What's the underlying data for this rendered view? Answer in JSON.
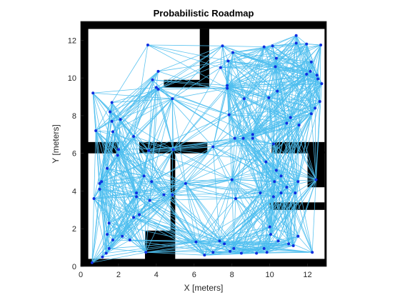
{
  "chart_data": {
    "type": "scatter",
    "title": "Probabilistic Roadmap",
    "xlabel": "X [meters]",
    "ylabel": "Y [meters]",
    "xlim": [
      0,
      13
    ],
    "ylim": [
      0,
      13
    ],
    "xticks": [
      "0",
      "2",
      "4",
      "6",
      "8",
      "10",
      "12"
    ],
    "yticks": [
      "0",
      "2",
      "4",
      "6",
      "8",
      "10",
      "12"
    ],
    "grid": false,
    "colors": {
      "obstacle": "#000000",
      "edge": "#4dbeee",
      "node": "#0e2ee0",
      "axis": "#262626"
    },
    "obstacles": [
      {
        "x": 0,
        "y": 12.6,
        "w": 13.2,
        "h": 0.4
      },
      {
        "x": 0,
        "y": 0,
        "w": 13.2,
        "h": 0.4
      },
      {
        "x": 0,
        "y": 0,
        "w": 0.4,
        "h": 13
      },
      {
        "x": 12.9,
        "y": 0,
        "w": 0.3,
        "h": 13
      },
      {
        "x": 0,
        "y": 6,
        "w": 2,
        "h": 0.6
      },
      {
        "x": 3.1,
        "y": 6,
        "w": 2.2,
        "h": 0.6
      },
      {
        "x": 3.4,
        "y": 0,
        "w": 1.6,
        "h": 1.9
      },
      {
        "x": 4.75,
        "y": 1.8,
        "w": 0.25,
        "h": 4.5
      },
      {
        "x": 4.4,
        "y": 9.5,
        "w": 1.9,
        "h": 0.4
      },
      {
        "x": 6.3,
        "y": 9.5,
        "w": 0.5,
        "h": 3.1
      },
      {
        "x": 5.3,
        "y": 6,
        "w": 1.4,
        "h": 0.6
      },
      {
        "x": 10.1,
        "y": 6,
        "w": 2.8,
        "h": 0.6
      },
      {
        "x": 10,
        "y": 3,
        "w": 2.9,
        "h": 0.4
      },
      {
        "x": 12,
        "y": 4.2,
        "w": 0.9,
        "h": 1.9
      }
    ],
    "nodes": [
      [
        3.55,
        11.75
      ],
      [
        0.65,
        9.2
      ],
      [
        0.8,
        7.2
      ],
      [
        1.65,
        8.7
      ],
      [
        1.55,
        8.2
      ],
      [
        1.65,
        7.7
      ],
      [
        1.7,
        7.15
      ],
      [
        2.1,
        7.8
      ],
      [
        2.8,
        6.9
      ],
      [
        4.0,
        9.5
      ],
      [
        4.1,
        10.35
      ],
      [
        3.8,
        9.9
      ],
      [
        4.85,
        8.9
      ],
      [
        4.9,
        6.2
      ],
      [
        3.6,
        6.15
      ],
      [
        2.0,
        6.2
      ],
      [
        1.95,
        5.9
      ],
      [
        1.4,
        5.2
      ],
      [
        1.1,
        4.5
      ],
      [
        1.0,
        4.4
      ],
      [
        1.0,
        4.1
      ],
      [
        0.7,
        3.6
      ],
      [
        1.5,
        2.3
      ],
      [
        1.4,
        1.7
      ],
      [
        1.15,
        0.5
      ],
      [
        1.35,
        0.7
      ],
      [
        1.5,
        0.95
      ],
      [
        2.2,
        1.6
      ],
      [
        2.6,
        1.4
      ],
      [
        2.8,
        2.6
      ],
      [
        3.1,
        2.75
      ],
      [
        2.95,
        3.7
      ],
      [
        2.95,
        3.9
      ],
      [
        3.35,
        4.8
      ],
      [
        3.75,
        4.5
      ],
      [
        3.65,
        3.5
      ],
      [
        3.45,
        0.75
      ],
      [
        0.6,
        0.2
      ],
      [
        1.7,
        1.4
      ],
      [
        4.4,
        3.8
      ],
      [
        4.85,
        3.8
      ],
      [
        5.55,
        4.4
      ],
      [
        6.1,
        1.3
      ],
      [
        6.55,
        0.6
      ],
      [
        7.0,
        0.75
      ],
      [
        7.6,
        1.2
      ],
      [
        7.9,
        0.8
      ],
      [
        8.1,
        0.95
      ],
      [
        8.5,
        0.7
      ],
      [
        9.3,
        0.7
      ],
      [
        9.7,
        0.95
      ],
      [
        9.85,
        0.75
      ],
      [
        7.35,
        1.35
      ],
      [
        8.0,
        4.6
      ],
      [
        9.1,
        6.8
      ],
      [
        8.6,
        6.8
      ],
      [
        8.15,
        6.8
      ],
      [
        9.1,
        7.0
      ],
      [
        7.75,
        9.45
      ],
      [
        7.75,
        9.6
      ],
      [
        7.5,
        11.7
      ],
      [
        8.05,
        11.35
      ],
      [
        7.8,
        10.9
      ],
      [
        7.4,
        10.55
      ],
      [
        7.0,
        6.35
      ],
      [
        7.85,
        8.05
      ],
      [
        8.65,
        8.9
      ],
      [
        9.95,
        8.95
      ],
      [
        10.3,
        10.6
      ],
      [
        10.35,
        11.05
      ],
      [
        10.4,
        9.3
      ],
      [
        10.2,
        6.5
      ],
      [
        9.7,
        11.65
      ],
      [
        10.15,
        11.7
      ],
      [
        11.4,
        12.25
      ],
      [
        11.4,
        11.85
      ],
      [
        11.95,
        11.8
      ],
      [
        12.7,
        11.75
      ],
      [
        12.2,
        10.85
      ],
      [
        12.15,
        10.35
      ],
      [
        11.95,
        10.2
      ],
      [
        12.5,
        10.15
      ],
      [
        12.55,
        9.95
      ],
      [
        12.75,
        9.7
      ],
      [
        12.65,
        8.75
      ],
      [
        12.4,
        8.4
      ],
      [
        12.2,
        8.1
      ],
      [
        11.55,
        7.5
      ],
      [
        11.1,
        7.9
      ],
      [
        10.9,
        7.6
      ],
      [
        10.35,
        5.1
      ],
      [
        10.25,
        4.5
      ],
      [
        10.6,
        4.8
      ],
      [
        11.35,
        3.9
      ],
      [
        12.45,
        4.6
      ],
      [
        11.5,
        4.5
      ],
      [
        10.9,
        4.2
      ],
      [
        10.6,
        3.9
      ],
      [
        10.2,
        3.7
      ],
      [
        10.0,
        2.1
      ],
      [
        10.05,
        1.7
      ],
      [
        10.45,
        1.35
      ],
      [
        11.0,
        1.2
      ],
      [
        11.25,
        1.1
      ],
      [
        11.5,
        1.6
      ],
      [
        12.25,
        0.75
      ],
      [
        9.8,
        5.55
      ],
      [
        4.1,
        9.4
      ],
      [
        8.2,
        3.6
      ],
      [
        9.5,
        3.9
      ]
    ]
  }
}
